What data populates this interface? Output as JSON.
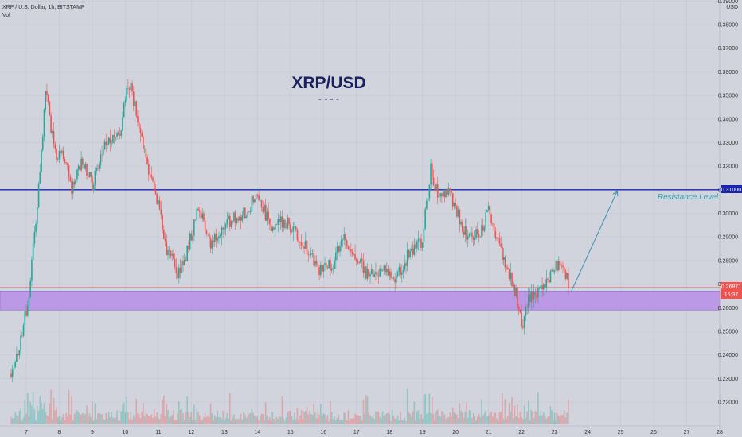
{
  "header": {
    "symbol_line": "XRP / U.S. Dollar, 1h, BITSTAMP",
    "volume_label": "Vol",
    "currency": "USD"
  },
  "chart_data": {
    "type": "candlestick",
    "title": "XRP/USD",
    "title_underline": "- - - -",
    "ylim": [
      0.21,
      0.39
    ],
    "y_ticks": [
      "0.39000",
      "0.38000",
      "0.37000",
      "0.36000",
      "0.35000",
      "0.34000",
      "0.33000",
      "0.32000",
      "0.31000",
      "0.30000",
      "0.29000",
      "0.28000",
      "0.27000",
      "0.26000",
      "0.25000",
      "0.24000",
      "0.23000",
      "0.22000"
    ],
    "x_tick_labels": [
      "7",
      "8",
      "9",
      "10",
      "11",
      "12",
      "13",
      "14",
      "15",
      "16",
      "17",
      "18",
      "19",
      "20",
      "21",
      "22",
      "23",
      "24",
      "25",
      "26",
      "27",
      "28"
    ],
    "last_price": {
      "value": 0.26871,
      "label": "0.26871",
      "countdown": "15:37"
    },
    "resistance": {
      "value": 0.31,
      "label": "0.31000",
      "annotation": "Resistance Level",
      "color": "#1a23b8"
    },
    "support_zone": {
      "from": 0.259,
      "to": 0.267,
      "color": "#b98ee8"
    },
    "projection": {
      "from": {
        "day": 23.5,
        "price": 0.2668
      },
      "to": {
        "day": 24.9,
        "price": 0.3095
      }
    },
    "colors": {
      "up": "#26a69a",
      "down": "#ef5350",
      "background": "#d1d4dc",
      "grid": "#c4c7cf"
    },
    "price_path_daily_closes": [
      {
        "day": 6.5,
        "price": 0.232
      },
      {
        "day": 6.8,
        "price": 0.244
      },
      {
        "day": 7.05,
        "price": 0.262
      },
      {
        "day": 7.35,
        "price": 0.305
      },
      {
        "day": 7.6,
        "price": 0.355
      },
      {
        "day": 7.85,
        "price": 0.325
      },
      {
        "day": 8.1,
        "price": 0.325
      },
      {
        "day": 8.4,
        "price": 0.31
      },
      {
        "day": 8.7,
        "price": 0.322
      },
      {
        "day": 9.0,
        "price": 0.312
      },
      {
        "day": 9.4,
        "price": 0.33
      },
      {
        "day": 9.8,
        "price": 0.332
      },
      {
        "day": 10.1,
        "price": 0.356
      },
      {
        "day": 10.35,
        "price": 0.342
      },
      {
        "day": 10.7,
        "price": 0.317
      },
      {
        "day": 10.95,
        "price": 0.307
      },
      {
        "day": 11.25,
        "price": 0.284
      },
      {
        "day": 11.6,
        "price": 0.275
      },
      {
        "day": 11.9,
        "price": 0.285
      },
      {
        "day": 12.2,
        "price": 0.303
      },
      {
        "day": 12.6,
        "price": 0.287
      },
      {
        "day": 13.0,
        "price": 0.296
      },
      {
        "day": 13.5,
        "price": 0.299
      },
      {
        "day": 14.0,
        "price": 0.307
      },
      {
        "day": 14.4,
        "price": 0.295
      },
      {
        "day": 14.8,
        "price": 0.297
      },
      {
        "day": 15.2,
        "price": 0.292
      },
      {
        "day": 15.6,
        "price": 0.282
      },
      {
        "day": 15.9,
        "price": 0.275
      },
      {
        "day": 16.3,
        "price": 0.279
      },
      {
        "day": 16.6,
        "price": 0.291
      },
      {
        "day": 17.0,
        "price": 0.28
      },
      {
        "day": 17.4,
        "price": 0.273
      },
      {
        "day": 17.8,
        "price": 0.277
      },
      {
        "day": 18.2,
        "price": 0.273
      },
      {
        "day": 18.6,
        "price": 0.283
      },
      {
        "day": 19.0,
        "price": 0.289
      },
      {
        "day": 19.25,
        "price": 0.319
      },
      {
        "day": 19.5,
        "price": 0.305
      },
      {
        "day": 19.8,
        "price": 0.309
      },
      {
        "day": 20.1,
        "price": 0.298
      },
      {
        "day": 20.4,
        "price": 0.289
      },
      {
        "day": 20.7,
        "price": 0.291
      },
      {
        "day": 21.0,
        "price": 0.301
      },
      {
        "day": 21.3,
        "price": 0.287
      },
      {
        "day": 21.6,
        "price": 0.276
      },
      {
        "day": 21.85,
        "price": 0.265
      },
      {
        "day": 22.0,
        "price": 0.252
      },
      {
        "day": 22.2,
        "price": 0.263
      },
      {
        "day": 22.5,
        "price": 0.267
      },
      {
        "day": 22.8,
        "price": 0.272
      },
      {
        "day": 23.1,
        "price": 0.278
      },
      {
        "day": 23.35,
        "price": 0.274
      },
      {
        "day": 23.45,
        "price": 0.268
      }
    ]
  }
}
